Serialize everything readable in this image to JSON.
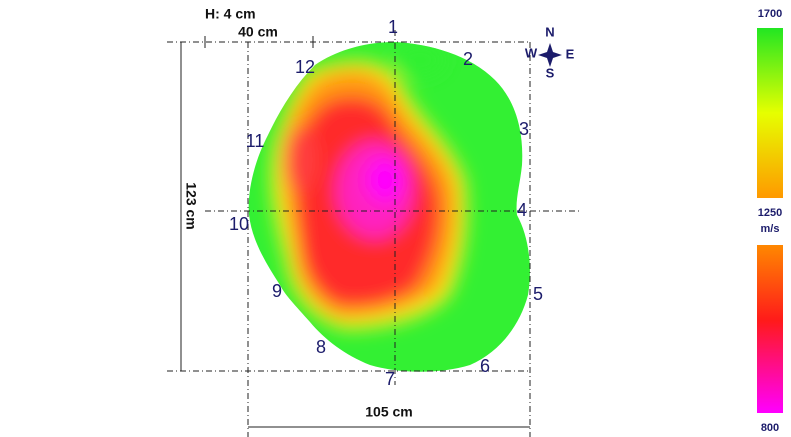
{
  "header": {
    "height": "H: 4 cm"
  },
  "dimensions": {
    "segment": "40 cm",
    "height": "123 cm",
    "width": "105 cm"
  },
  "points": [
    "1",
    "2",
    "3",
    "4",
    "5",
    "6",
    "7",
    "8",
    "9",
    "10",
    "11",
    "12"
  ],
  "compass": {
    "north": "N",
    "east": "E",
    "south": "S",
    "west": "W"
  },
  "scale": {
    "max": "1700",
    "mid": "1250",
    "unit": "m/s",
    "min": "800"
  }
}
